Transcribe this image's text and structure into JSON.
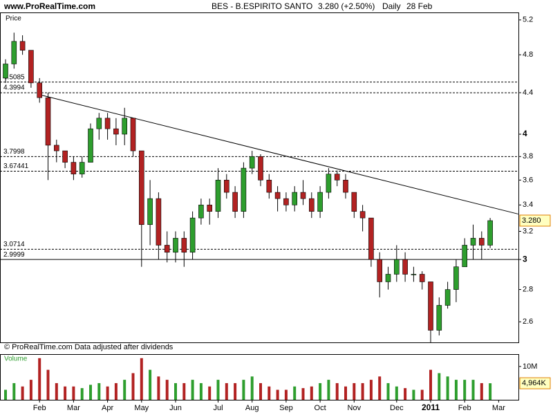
{
  "site": "www.ProRealTime.com",
  "footer": "© ProRealTime.com  Data adjusted after dividends",
  "chart_data": [
    {
      "type": "candlestick",
      "title": "BES - B.ESPIRITO SANTO",
      "quote_label": "3.280 (+2.50%)",
      "period": "Daily",
      "date_label": "28 Feb",
      "axis_label": "Price",
      "categories": [
        null,
        null,
        null,
        null,
        "Feb",
        null,
        null,
        null,
        "Mar",
        null,
        null,
        null,
        "Apr",
        null,
        null,
        null,
        "May",
        null,
        null,
        null,
        "Jun",
        null,
        null,
        null,
        null,
        "Jul",
        null,
        null,
        null,
        "Aug",
        null,
        null,
        null,
        "Sep",
        null,
        null,
        null,
        "Oct",
        null,
        null,
        null,
        "Nov",
        null,
        null,
        null,
        null,
        "Dec",
        null,
        null,
        null,
        "2011",
        null,
        null,
        null,
        "Feb",
        null,
        null,
        null,
        "Mar"
      ],
      "open": [
        4.55,
        4.7,
        4.95,
        4.85,
        4.5,
        4.35,
        3.9,
        3.85,
        3.75,
        3.65,
        3.75,
        4.05,
        4.15,
        4.05,
        4.0,
        4.15,
        3.85,
        3.25,
        3.45,
        3.1,
        3.05,
        3.15,
        3.05,
        3.3,
        3.4,
        3.35,
        3.6,
        3.5,
        3.35,
        3.7,
        3.8,
        3.6,
        3.5,
        3.45,
        3.4,
        3.5,
        3.45,
        3.35,
        3.5,
        3.65,
        3.6,
        3.5,
        3.35,
        3.3,
        3.0,
        2.85,
        2.9,
        3.0,
        2.9,
        2.9,
        2.85,
        2.55,
        2.7,
        2.8,
        2.95,
        3.1,
        3.15,
        3.1,
        null
      ],
      "high": [
        4.75,
        5.05,
        5.02,
        4.85,
        4.55,
        4.4,
        3.95,
        3.85,
        3.8,
        3.8,
        4.1,
        4.2,
        4.2,
        4.15,
        4.25,
        4.15,
        3.85,
        3.6,
        3.5,
        3.2,
        3.2,
        3.2,
        3.35,
        3.45,
        3.45,
        3.7,
        3.65,
        3.55,
        3.75,
        3.85,
        3.82,
        3.65,
        3.55,
        3.5,
        3.55,
        3.6,
        3.5,
        3.55,
        3.7,
        3.68,
        3.65,
        3.5,
        3.4,
        3.3,
        3.05,
        2.95,
        3.1,
        3.05,
        2.95,
        2.92,
        2.85,
        2.75,
        2.85,
        3.0,
        3.15,
        3.25,
        3.2,
        3.3,
        null
      ],
      "low": [
        4.5,
        4.65,
        4.8,
        4.45,
        4.3,
        3.6,
        3.75,
        3.7,
        3.6,
        3.62,
        3.75,
        3.95,
        3.95,
        3.9,
        3.9,
        3.8,
        2.95,
        3.1,
        3.0,
        2.98,
        2.98,
        2.95,
        3.0,
        3.25,
        3.25,
        3.3,
        3.45,
        3.3,
        3.3,
        3.65,
        3.55,
        3.45,
        3.35,
        3.35,
        3.35,
        3.4,
        3.3,
        3.3,
        3.45,
        3.55,
        3.45,
        3.3,
        3.2,
        2.95,
        2.75,
        2.8,
        2.85,
        2.85,
        2.85,
        2.8,
        2.48,
        2.52,
        2.68,
        2.72,
        2.95,
        3.0,
        3.0,
        3.08,
        null
      ],
      "close": [
        4.7,
        4.95,
        4.85,
        4.5,
        4.35,
        3.9,
        3.85,
        3.75,
        3.65,
        3.75,
        4.05,
        4.15,
        4.05,
        4.0,
        4.15,
        3.85,
        3.25,
        3.45,
        3.1,
        3.05,
        3.15,
        3.05,
        3.3,
        3.4,
        3.35,
        3.6,
        3.5,
        3.35,
        3.7,
        3.8,
        3.6,
        3.5,
        3.45,
        3.4,
        3.5,
        3.45,
        3.35,
        3.5,
        3.65,
        3.6,
        3.5,
        3.35,
        3.3,
        3.0,
        2.85,
        2.9,
        3.0,
        2.9,
        2.9,
        2.85,
        2.55,
        2.7,
        2.8,
        2.95,
        3.1,
        3.15,
        3.1,
        3.28,
        null
      ],
      "up_color": "#2e9e2e",
      "down_color": "#b22222",
      "log_scale": true,
      "ylim": [
        2.48,
        5.29
      ],
      "yticks": [
        5.2,
        4.8,
        4.4,
        4,
        3.8,
        3.6,
        3.4,
        3.2,
        3,
        2.8,
        2.6
      ],
      "bold_yticks": [
        4,
        3
      ],
      "dashed_levels": [
        4.5085,
        4.3994,
        3.7998,
        3.67441,
        3.0714
      ],
      "solid_levels": [
        2.9999
      ],
      "trendline": {
        "x": [
          4,
          60.3
        ],
        "y": [
          4.38,
          3.33
        ]
      },
      "last_value_label": {
        "value": 3.28,
        "label": "3.280"
      }
    },
    {
      "type": "bar",
      "title": "Volume",
      "values": [
        3000000,
        5000000,
        4000000,
        6000000,
        12500000,
        9000000,
        5000000,
        4000000,
        4000000,
        3500000,
        4500000,
        5000000,
        4000000,
        5000000,
        6000000,
        8000000,
        12500000,
        9000000,
        7000000,
        6000000,
        5000000,
        5000000,
        6000000,
        5000000,
        4000000,
        6000000,
        5000000,
        5000000,
        6000000,
        7000000,
        5000000,
        4000000,
        3000000,
        3000000,
        4000000,
        3500000,
        4000000,
        5000000,
        6000000,
        5000000,
        4000000,
        5000000,
        5000000,
        6000000,
        7000000,
        5000000,
        4000000,
        3500000,
        3000000,
        3000000,
        9000000,
        8000000,
        7000000,
        6000000,
        6000000,
        6000000,
        5000000,
        4964000,
        null
      ],
      "ylim": [
        0,
        13500000
      ],
      "yticks": [
        {
          "value": 10000000,
          "label": "10M"
        }
      ],
      "last_value_label": {
        "value": 4964000,
        "label": "4,964K"
      }
    }
  ]
}
